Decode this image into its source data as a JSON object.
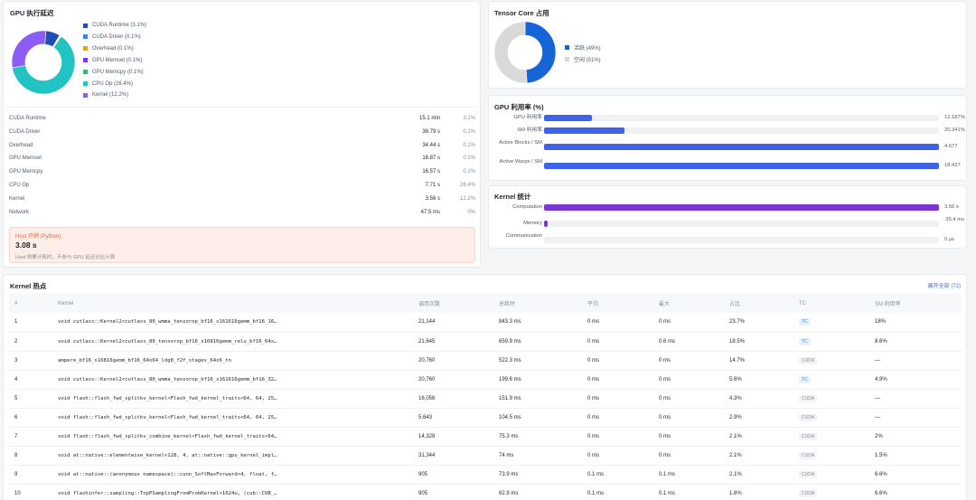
{
  "gpu_latency": {
    "title": "GPU 执行延迟",
    "chart_data": {
      "type": "pie",
      "title": "GPU 执行延迟",
      "slices": [
        {
          "name": "CUDA Runtime (3.1%)",
          "value": 3.1,
          "color": "#1f4fb4"
        },
        {
          "name": "CUDA Driver (0.1%)",
          "value": 0.1,
          "color": "#3b82f6"
        },
        {
          "name": "Overhead (0.1%)",
          "value": 0.1,
          "color": "#f59e0b"
        },
        {
          "name": "GPU Memset (0.1%)",
          "value": 0.1,
          "color": "#7c3aed"
        },
        {
          "name": "GPU Memcpy (0.1%)",
          "value": 0.1,
          "color": "#22c55e"
        },
        {
          "name": "CPU Op (26.4%)",
          "value": 26.4,
          "color": "#22c3c3"
        },
        {
          "name": "Kernel (12.2%)",
          "value": 12.2,
          "color": "#8b5cf6"
        }
      ]
    },
    "stats": [
      {
        "label": "CUDA Runtime",
        "value": "15.1 min",
        "pct": "3.1%"
      },
      {
        "label": "CUDA Driver",
        "value": "38.79 s",
        "pct": "0.1%"
      },
      {
        "label": "Overhead",
        "value": "34.44 s",
        "pct": "0.1%"
      },
      {
        "label": "GPU Memset",
        "value": "18.87 s",
        "pct": "0.1%"
      },
      {
        "label": "GPU Memcpy",
        "value": "16.57 s",
        "pct": "0.1%"
      },
      {
        "label": "CPU Op",
        "value": "7.71 s",
        "pct": "26.4%"
      },
      {
        "label": "Kernel",
        "value": "3.56 s",
        "pct": "12.2%"
      },
      {
        "label": "Network",
        "value": "47.5 ms",
        "pct": "0%"
      }
    ],
    "host": {
      "title": "Host 开销 (Python)",
      "value": "3.08 s",
      "note": "Host 侧累计耗时，不参与 GPU 延迟占比计算"
    }
  },
  "tensor_core": {
    "title": "Tensor Core 占用",
    "chart_data": {
      "type": "pie",
      "title": "Tensor Core 占用",
      "slices": [
        {
          "name": "活跃 (49%)",
          "value": 49,
          "color": "#1565d8"
        },
        {
          "name": "空闲 (51%)",
          "value": 51,
          "color": "#d9d9d9"
        }
      ]
    }
  },
  "gpu_util": {
    "title": "GPU 利用率 (%)",
    "chart_data": {
      "type": "bar",
      "orientation": "horizontal",
      "title": "GPU 利用率 (%)",
      "categories": [
        "GPU 利用率",
        "SM 利用率",
        "Active Blocks / SM",
        "Active Warps / SM"
      ],
      "values": [
        12.187,
        20.341,
        4.677,
        18.427
      ],
      "fill_fraction": [
        0.121,
        0.203,
        1.0,
        1.0
      ],
      "value_labels": [
        "12.187%",
        "20.341%",
        "4.677",
        "18.427"
      ],
      "color": "#3f63e8"
    }
  },
  "kernel_stats": {
    "title": "Kernel 统计",
    "chart_data": {
      "type": "bar",
      "orientation": "horizontal",
      "title": "Kernel 统计",
      "categories": [
        "Computation",
        "Memory",
        "Communication"
      ],
      "values": [
        3.56,
        0.0354,
        0
      ],
      "fill_fraction": [
        1.0,
        0.01,
        0
      ],
      "value_labels": [
        "3.56 s",
        "35.4 ms",
        "0 μs"
      ],
      "color": "#7a35d8"
    }
  },
  "hotspots": {
    "title": "Kernel 热点",
    "expand_label": "展开全部 (72)",
    "columns": [
      "#",
      "Kernel",
      "调用次数",
      "总耗时",
      "平均",
      "最大",
      "占比",
      "TC",
      "SM 利用率"
    ],
    "rows": [
      [
        "1",
        "void cutlass::Kernel2<cutlass_80_wmma_tensorop_bf16_s161616gemm_bf16_16…",
        "21,144",
        "843.3 ms",
        "0 ms",
        "0 ms",
        "23.7%",
        "TC",
        "18%"
      ],
      [
        "2",
        "void cutlass::Kernel2<cutlass_80_tensorop_bf16_s16816gemm_relu_bf16_64x…",
        "21,645",
        "659.9 ms",
        "0 ms",
        "0.6 ms",
        "18.5%",
        "TC",
        "8.6%"
      ],
      [
        "3",
        "ampere_bf16_s16816gemm_bf16_64x64_ldg8_f2f_stages_64x6_tn",
        "20,760",
        "522.3 ms",
        "0 ms",
        "0 ms",
        "14.7%",
        "CUDA",
        "—"
      ],
      [
        "4",
        "void cutlass::Kernel2<cutlass_80_wmma_tensorop_bf16_s161616gemm_bf16_32…",
        "20,760",
        "199.6 ms",
        "0 ms",
        "0 ms",
        "5.6%",
        "TC",
        "4.9%"
      ],
      [
        "5",
        "void flash::flash_fwd_splitkv_kernel<Flash_fwd_kernel_traits<64, 64, 25…",
        "16,056",
        "151.9 ms",
        "0 ms",
        "0 ms",
        "4.3%",
        "CUDA",
        "—"
      ],
      [
        "6",
        "void flash::flash_fwd_splitkv_kernel<Flash_fwd_kernel_traits<64, 64, 25…",
        "5,643",
        "104.5 ms",
        "0 ms",
        "0 ms",
        "2.9%",
        "CUDA",
        "—"
      ],
      [
        "7",
        "void flash::flash_fwd_splitkv_combine_kernel<Flash_fwd_kernel_traits<64…",
        "14,328",
        "75.3 ms",
        "0 ms",
        "0 ms",
        "2.1%",
        "CUDA",
        "2%"
      ],
      [
        "8",
        "void at::native::elementwise_kernel<128, 4, at::native::gpu_kernel_impl…",
        "31,344",
        "74 ms",
        "0 ms",
        "0 ms",
        "2.1%",
        "CUDA",
        "1.5%"
      ],
      [
        "9",
        "void at::native::(anonymous namespace)::cunn_SoftMaxForward<4, float, f…",
        "905",
        "73.9 ms",
        "0.1 ms",
        "0.1 ms",
        "2.1%",
        "CUDA",
        "6.6%"
      ],
      [
        "10",
        "void flashinfer::sampling::TopPSamplingFromProbKernel<1024u, (cub::CUB_…",
        "905",
        "62.9 ms",
        "0.1 ms",
        "0.1 ms",
        "1.8%",
        "CUDA",
        "6.6%"
      ]
    ]
  }
}
